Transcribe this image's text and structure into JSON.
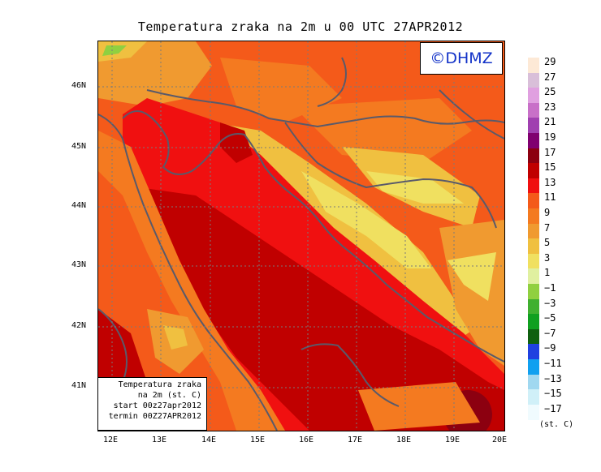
{
  "title": "Temperatura zraka na 2m u 00 UTC 27APR2012",
  "logo_text": "©DHMZ",
  "info": {
    "line1": "Temperatura zraka",
    "line2": "na 2m (st. C)",
    "line3": "start 00z27apr2012",
    "line4": "termin 00Z27APR2012"
  },
  "lat_labels": [
    "46N",
    "45N",
    "44N",
    "43N",
    "42N",
    "41N"
  ],
  "lon_labels": [
    "12E",
    "13E",
    "14E",
    "15E",
    "16E",
    "17E",
    "18E",
    "19E",
    "20E"
  ],
  "legend": {
    "labels": [
      "29",
      "27",
      "25",
      "23",
      "21",
      "19",
      "17",
      "15",
      "13",
      "11",
      "9",
      "7",
      "5",
      "3",
      "1",
      "−1",
      "−3",
      "−5",
      "−7",
      "−9",
      "−11",
      "−13",
      "−15",
      "−17"
    ],
    "colors": [
      "#fde9d6",
      "#d9bfd9",
      "#e0a0e0",
      "#c870c8",
      "#a040b0",
      "#800070",
      "#8c0010",
      "#c00000",
      "#f01010",
      "#f45a1a",
      "#f47a20",
      "#f09a30",
      "#f0c040",
      "#f0e060",
      "#e0f0a0",
      "#90d040",
      "#40b030",
      "#10a020",
      "#106010",
      "#2040e0",
      "#10a0f0",
      "#a0d8f0",
      "#d0f0f8",
      "#f0fbfe"
    ],
    "unit": "(st. C)"
  }
}
